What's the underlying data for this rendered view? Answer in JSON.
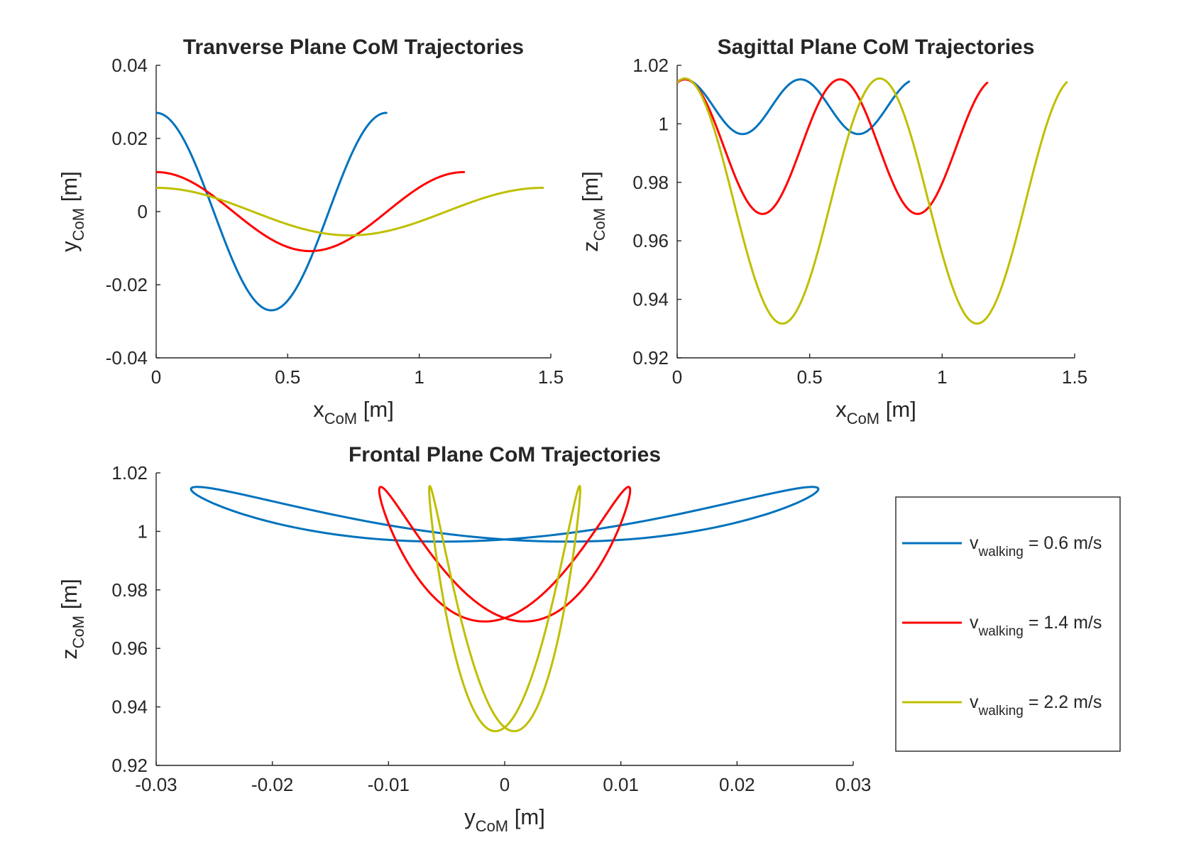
{
  "chart_data": [
    {
      "type": "line",
      "id": "transverse",
      "title": "Tranverse Plane CoM Trajectories",
      "xlabel": {
        "base": "x",
        "sub": "CoM",
        "unit": " [m]"
      },
      "ylabel": {
        "base": "y",
        "sub": "CoM",
        "unit": " [m]"
      },
      "xlim": [
        0,
        1.5
      ],
      "ylim": [
        -0.04,
        0.04
      ],
      "xticks": [
        0,
        0.5,
        1,
        1.5
      ],
      "xtick_labels": [
        "0",
        "0.5",
        "1",
        "1.5"
      ],
      "yticks": [
        -0.04,
        -0.02,
        0,
        0.02,
        0.04
      ],
      "ytick_labels": [
        "-0.04",
        "-0.02",
        "0",
        "0.02",
        "0.04"
      ],
      "grid": false,
      "series": [
        {
          "name": "v_walking = 0.6 m/s",
          "color": "#0072BD",
          "x_end": 0.875,
          "amplitude": 0.027,
          "cycles": 1
        },
        {
          "name": "v_walking = 1.4 m/s",
          "color": "#FF0000",
          "x_end": 1.17,
          "amplitude": 0.0108,
          "cycles": 1
        },
        {
          "name": "v_walking = 2.2 m/s",
          "color": "#BFBF00",
          "x_end": 1.47,
          "amplitude": 0.0065,
          "cycles": 1
        }
      ]
    },
    {
      "type": "line",
      "id": "sagittal",
      "title": "Sagittal Plane CoM Trajectories",
      "xlabel": {
        "base": "x",
        "sub": "CoM",
        "unit": " [m]"
      },
      "ylabel": {
        "base": "z",
        "sub": "CoM",
        "unit": " [m]"
      },
      "xlim": [
        0,
        1.5
      ],
      "ylim": [
        0.92,
        1.02
      ],
      "xticks": [
        0,
        0.5,
        1,
        1.5
      ],
      "xtick_labels": [
        "0",
        "0.5",
        "1",
        "1.5"
      ],
      "yticks": [
        0.92,
        0.94,
        0.96,
        0.98,
        1.0,
        1.02
      ],
      "ytick_labels": [
        "0.92",
        "0.94",
        "0.96",
        "0.98",
        "1",
        "1.02"
      ],
      "grid": false,
      "series": [
        {
          "name": "v_walking = 0.6 m/s",
          "color": "#0072BD",
          "x_end": 0.875,
          "z_max": 1.0152,
          "z_min": 0.9965,
          "phase": 0.4
        },
        {
          "name": "v_walking = 1.4 m/s",
          "color": "#FF0000",
          "x_end": 1.17,
          "z_max": 1.0152,
          "z_min": 0.9692,
          "phase": 0.32
        },
        {
          "name": "v_walking = 2.2 m/s",
          "color": "#BFBF00",
          "x_end": 1.47,
          "z_max": 1.0155,
          "z_min": 0.9317,
          "phase": 0.25
        }
      ]
    },
    {
      "type": "line",
      "id": "frontal",
      "title": "Frontal Plane CoM Trajectories",
      "xlabel": {
        "base": "y",
        "sub": "CoM",
        "unit": " [m]"
      },
      "ylabel": {
        "base": "z",
        "sub": "CoM",
        "unit": " [m]"
      },
      "xlim": [
        -0.03,
        0.03
      ],
      "ylim": [
        0.92,
        1.02
      ],
      "xticks": [
        -0.03,
        -0.02,
        -0.01,
        0,
        0.01,
        0.02,
        0.03
      ],
      "xtick_labels": [
        "-0.03",
        "-0.02",
        "-0.01",
        "0",
        "0.01",
        "0.02",
        "0.03"
      ],
      "yticks": [
        0.92,
        0.94,
        0.96,
        0.98,
        1.0,
        1.02
      ],
      "ytick_labels": [
        "0.92",
        "0.94",
        "0.96",
        "0.98",
        "1",
        "1.02"
      ],
      "grid": false,
      "series": [
        {
          "name": "v_walking = 0.6 m/s",
          "color": "#0072BD"
        },
        {
          "name": "v_walking = 1.4 m/s",
          "color": "#FF0000"
        },
        {
          "name": "v_walking = 2.2 m/s",
          "color": "#BFBF00"
        }
      ]
    }
  ],
  "legend": {
    "placement": "right of frontal plot",
    "items": [
      {
        "base": "v",
        "sub": "walking",
        "rest": " = 0.6 m/s",
        "color": "#0072BD"
      },
      {
        "base": "v",
        "sub": "walking",
        "rest": " = 1.4 m/s",
        "color": "#FF0000"
      },
      {
        "base": "v",
        "sub": "walking",
        "rest": " = 2.2 m/s",
        "color": "#BFBF00"
      }
    ]
  }
}
